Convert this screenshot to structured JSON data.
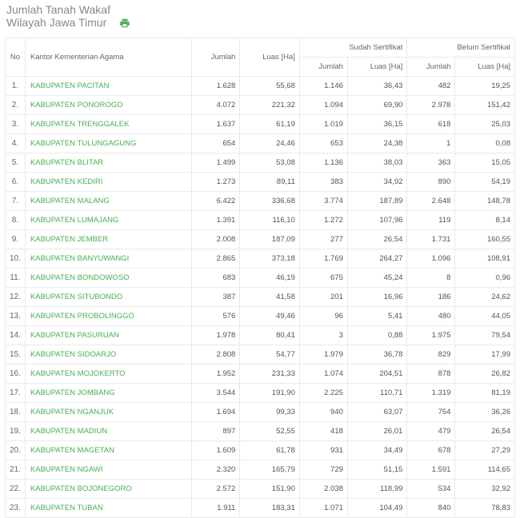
{
  "header": {
    "title_line1": "Jumlah Tanah Wakaf",
    "title_line2": "Wilayah Jawa Timur"
  },
  "columns": {
    "no": "No",
    "kantor": "Kantor Kementerian Agama",
    "jumlah": "Jumlah",
    "luas": "Luas [Ha]",
    "sudah": "Sudah Sertifikat",
    "belum": "Belum Sertifikat"
  },
  "colors": {
    "link": "#4caf50",
    "border": "#eaeaea",
    "header_text": "#888",
    "body_text": "#555"
  },
  "rows": [
    {
      "no": "1.",
      "name": "KABUPATEN PACITAN",
      "jumlah": "1.628",
      "luas": "55,68",
      "s_jumlah": "1.146",
      "s_luas": "36,43",
      "b_jumlah": "482",
      "b_luas": "19,25"
    },
    {
      "no": "2.",
      "name": "KABUPATEN PONOROGO",
      "jumlah": "4.072",
      "luas": "221,32",
      "s_jumlah": "1.094",
      "s_luas": "69,90",
      "b_jumlah": "2.978",
      "b_luas": "151,42"
    },
    {
      "no": "3.",
      "name": "KABUPATEN TRENGGALEK",
      "jumlah": "1.637",
      "luas": "61,19",
      "s_jumlah": "1.019",
      "s_luas": "36,15",
      "b_jumlah": "618",
      "b_luas": "25,03"
    },
    {
      "no": "4.",
      "name": "KABUPATEN TULUNGAGUNG",
      "jumlah": "654",
      "luas": "24,46",
      "s_jumlah": "653",
      "s_luas": "24,38",
      "b_jumlah": "1",
      "b_luas": "0,08"
    },
    {
      "no": "5.",
      "name": "KABUPATEN BLITAR",
      "jumlah": "1.499",
      "luas": "53,08",
      "s_jumlah": "1.136",
      "s_luas": "38,03",
      "b_jumlah": "363",
      "b_luas": "15,05"
    },
    {
      "no": "6.",
      "name": "KABUPATEN KEDIRI",
      "jumlah": "1.273",
      "luas": "89,11",
      "s_jumlah": "383",
      "s_luas": "34,92",
      "b_jumlah": "890",
      "b_luas": "54,19"
    },
    {
      "no": "7.",
      "name": "KABUPATEN MALANG",
      "jumlah": "6.422",
      "luas": "336,68",
      "s_jumlah": "3.774",
      "s_luas": "187,89",
      "b_jumlah": "2.648",
      "b_luas": "148,78"
    },
    {
      "no": "8.",
      "name": "KABUPATEN LUMAJANG",
      "jumlah": "1.391",
      "luas": "116,10",
      "s_jumlah": "1.272",
      "s_luas": "107,96",
      "b_jumlah": "119",
      "b_luas": "8,14"
    },
    {
      "no": "9.",
      "name": "KABUPATEN JEMBER",
      "jumlah": "2.008",
      "luas": "187,09",
      "s_jumlah": "277",
      "s_luas": "26,54",
      "b_jumlah": "1.731",
      "b_luas": "160,55"
    },
    {
      "no": "10.",
      "name": "KABUPATEN BANYUWANGI",
      "jumlah": "2.865",
      "luas": "373,18",
      "s_jumlah": "1.769",
      "s_luas": "264,27",
      "b_jumlah": "1.096",
      "b_luas": "108,91"
    },
    {
      "no": "11.",
      "name": "KABUPATEN BONDOWOSO",
      "jumlah": "683",
      "luas": "46,19",
      "s_jumlah": "675",
      "s_luas": "45,24",
      "b_jumlah": "8",
      "b_luas": "0,96"
    },
    {
      "no": "12.",
      "name": "KABUPATEN SITUBONDO",
      "jumlah": "387",
      "luas": "41,58",
      "s_jumlah": "201",
      "s_luas": "16,96",
      "b_jumlah": "186",
      "b_luas": "24,62"
    },
    {
      "no": "13.",
      "name": "KABUPATEN PROBOLINGGO",
      "jumlah": "576",
      "luas": "49,46",
      "s_jumlah": "96",
      "s_luas": "5,41",
      "b_jumlah": "480",
      "b_luas": "44,05"
    },
    {
      "no": "14.",
      "name": "KABUPATEN PASURUAN",
      "jumlah": "1.978",
      "luas": "80,41",
      "s_jumlah": "3",
      "s_luas": "0,88",
      "b_jumlah": "1.975",
      "b_luas": "79,54"
    },
    {
      "no": "15.",
      "name": "KABUPATEN SIDOARJO",
      "jumlah": "2.808",
      "luas": "54,77",
      "s_jumlah": "1.979",
      "s_luas": "36,78",
      "b_jumlah": "829",
      "b_luas": "17,99"
    },
    {
      "no": "16.",
      "name": "KABUPATEN MOJOKERTO",
      "jumlah": "1.952",
      "luas": "231,33",
      "s_jumlah": "1.074",
      "s_luas": "204,51",
      "b_jumlah": "878",
      "b_luas": "26,82"
    },
    {
      "no": "17.",
      "name": "KABUPATEN JOMBANG",
      "jumlah": "3.544",
      "luas": "191,90",
      "s_jumlah": "2.225",
      "s_luas": "110,71",
      "b_jumlah": "1.319",
      "b_luas": "81,19"
    },
    {
      "no": "18.",
      "name": "KABUPATEN NGANJUK",
      "jumlah": "1.694",
      "luas": "99,33",
      "s_jumlah": "940",
      "s_luas": "63,07",
      "b_jumlah": "754",
      "b_luas": "36,26"
    },
    {
      "no": "19.",
      "name": "KABUPATEN MADIUN",
      "jumlah": "897",
      "luas": "52,55",
      "s_jumlah": "418",
      "s_luas": "26,01",
      "b_jumlah": "479",
      "b_luas": "26,54"
    },
    {
      "no": "20.",
      "name": "KABUPATEN MAGETAN",
      "jumlah": "1.609",
      "luas": "61,78",
      "s_jumlah": "931",
      "s_luas": "34,49",
      "b_jumlah": "678",
      "b_luas": "27,29"
    },
    {
      "no": "21.",
      "name": "KABUPATEN NGAWI",
      "jumlah": "2.320",
      "luas": "165,79",
      "s_jumlah": "729",
      "s_luas": "51,15",
      "b_jumlah": "1.591",
      "b_luas": "114,65"
    },
    {
      "no": "22.",
      "name": "KABUPATEN BOJONEGORO",
      "jumlah": "2.572",
      "luas": "151,90",
      "s_jumlah": "2.038",
      "s_luas": "118,99",
      "b_jumlah": "534",
      "b_luas": "32,92"
    },
    {
      "no": "23.",
      "name": "KABUPATEN TUBAN",
      "jumlah": "1.911",
      "luas": "183,31",
      "s_jumlah": "1.071",
      "s_luas": "104,49",
      "b_jumlah": "840",
      "b_luas": "78,83"
    }
  ]
}
